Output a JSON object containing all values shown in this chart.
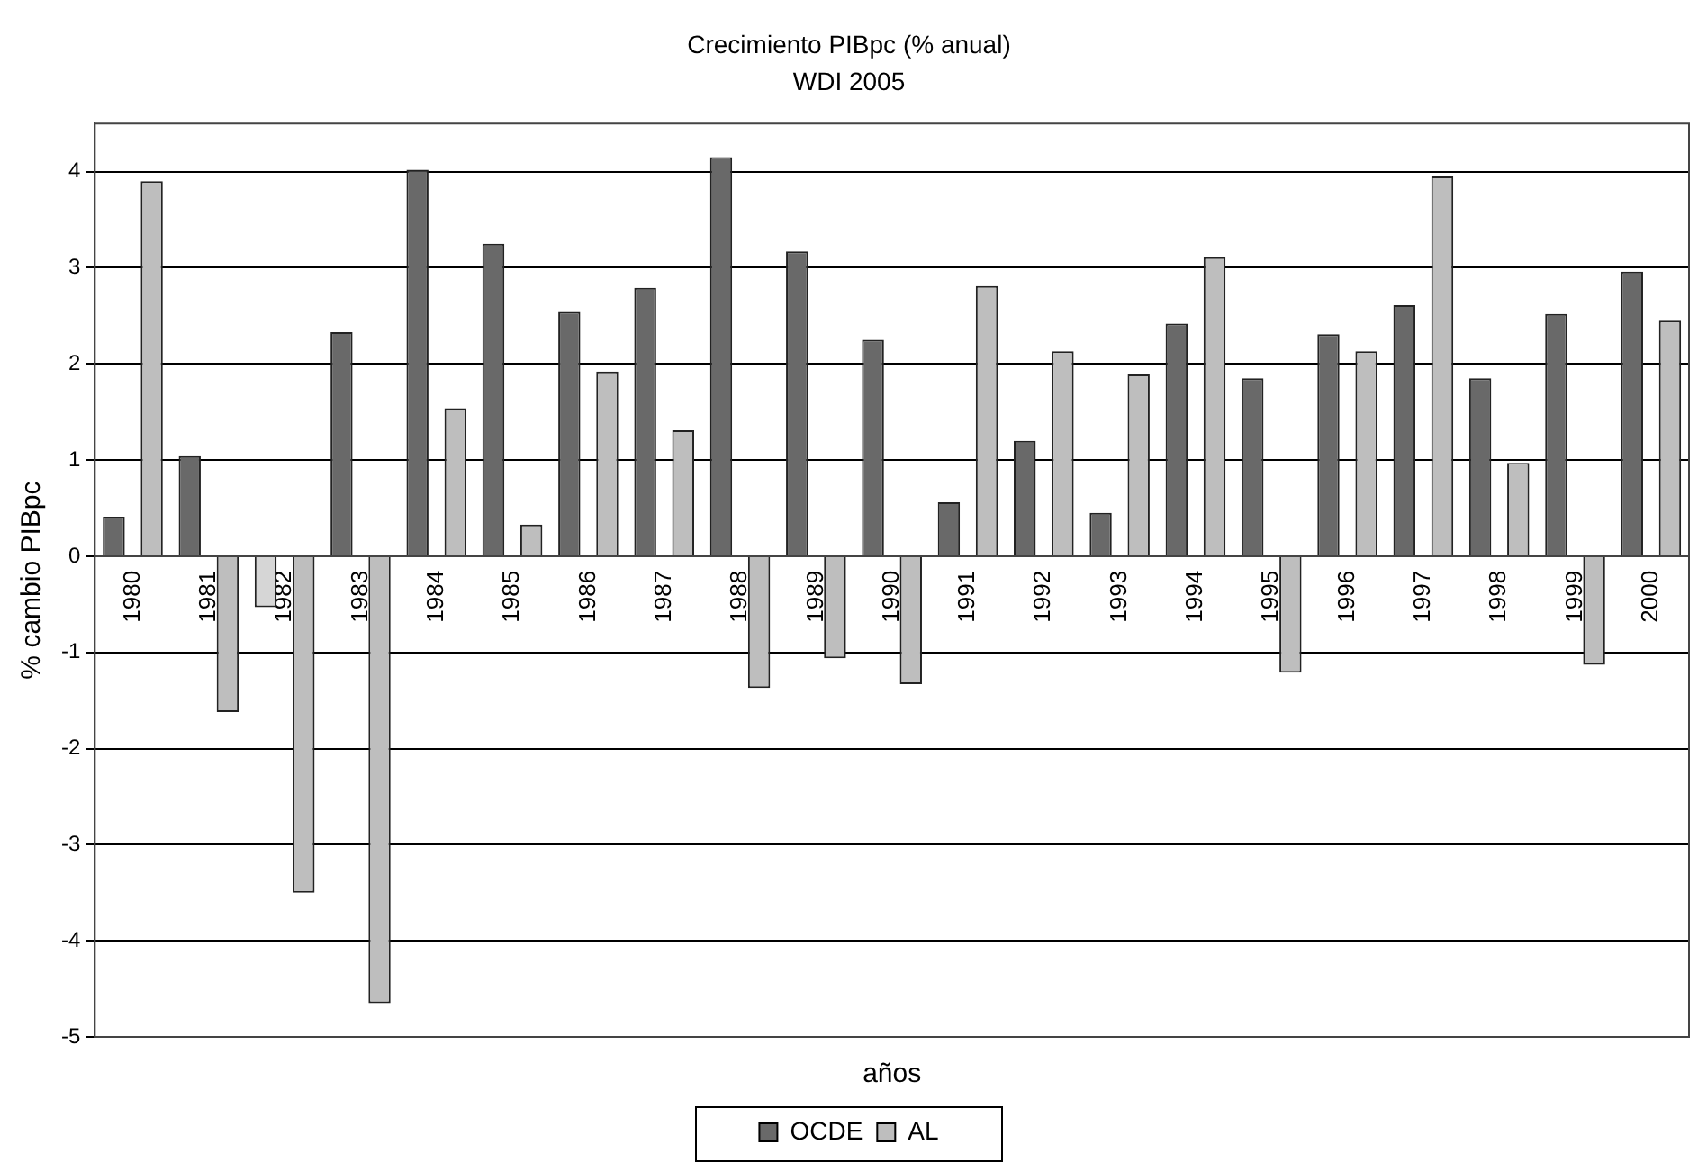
{
  "chart_data": {
    "type": "bar",
    "title": "Crecimiento PIBpc (% anual)",
    "subtitle": "WDI 2005",
    "xlabel": "años",
    "ylabel": "% cambio PIBpc",
    "categories": [
      "1980",
      "1981",
      "1982",
      "1983",
      "1984",
      "1985",
      "1986",
      "1987",
      "1988",
      "1989",
      "1990",
      "1991",
      "1992",
      "1993",
      "1994",
      "1995",
      "1996",
      "1997",
      "1998",
      "1999",
      "2000"
    ],
    "series": [
      {
        "name": "OCDE",
        "color": "#696969",
        "colors": [
          "#696969",
          "#696969",
          "#d6d6d6",
          "#696969",
          "#696969",
          "#696969",
          "#696969",
          "#696969",
          "#696969",
          "#696969",
          "#696969",
          "#696969",
          "#696969",
          "#696969",
          "#696969",
          "#696969",
          "#696969",
          "#696969",
          "#696969",
          "#696969",
          "#696969"
        ],
        "values": [
          0.41,
          1.04,
          -0.53,
          2.33,
          4.02,
          3.25,
          2.54,
          2.79,
          4.15,
          3.17,
          2.25,
          0.56,
          1.2,
          0.45,
          2.42,
          1.85,
          2.31,
          2.61,
          1.85,
          2.52,
          2.96
        ]
      },
      {
        "name": "AL",
        "color": "#bebebe",
        "values": [
          3.9,
          -1.62,
          -3.5,
          -4.65,
          1.54,
          0.33,
          1.92,
          1.31,
          -1.37,
          -1.06,
          -1.33,
          2.81,
          2.13,
          1.89,
          3.11,
          -1.21,
          2.13,
          3.95,
          0.97,
          -1.13,
          2.45
        ]
      }
    ],
    "ylim": [
      -5,
      4.5
    ],
    "yticks": [
      -5,
      -4,
      -3,
      -2,
      -1,
      0,
      1,
      2,
      3,
      4
    ],
    "grid": "y",
    "legend": "bottom"
  }
}
